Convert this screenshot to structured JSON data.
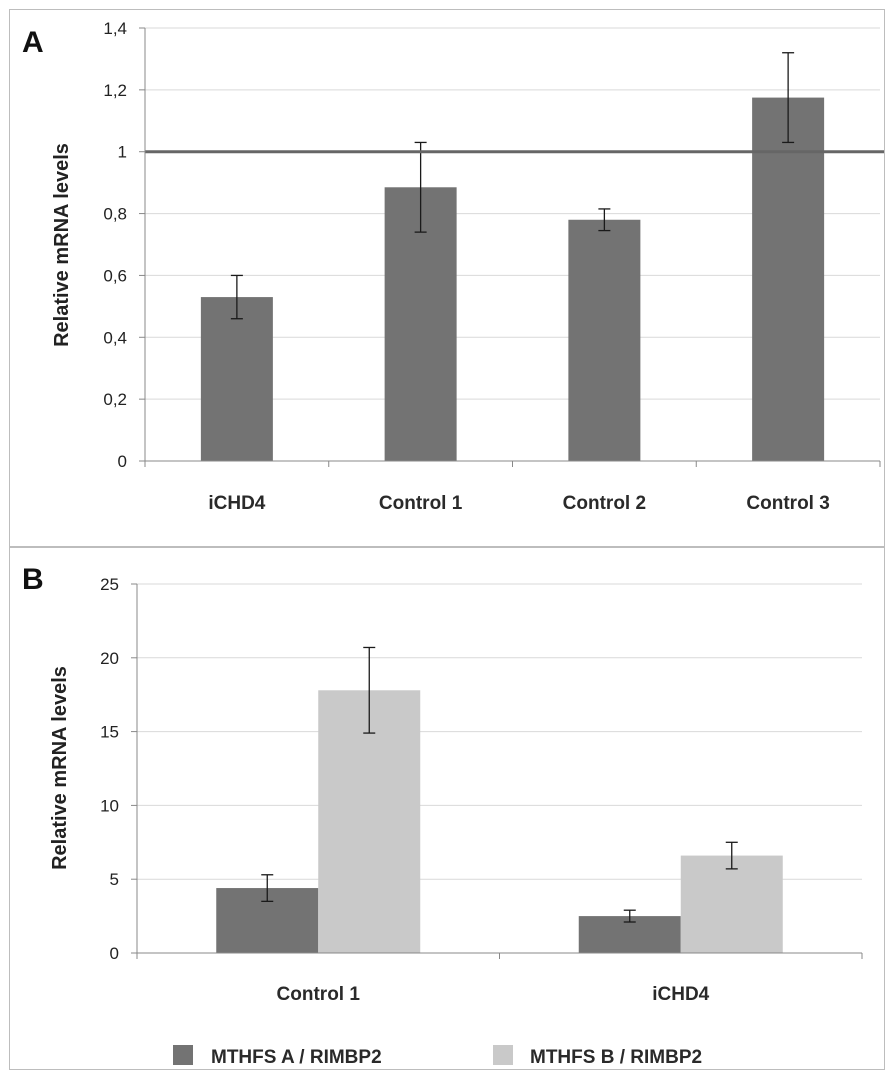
{
  "chart_data": [
    {
      "panel": "A",
      "type": "bar",
      "categories": [
        "iCHD4",
        "Control 1",
        "Control 2",
        "Control 3"
      ],
      "values": [
        0.53,
        0.885,
        0.78,
        1.175
      ],
      "errors": [
        0.07,
        0.145,
        0.035,
        0.145
      ],
      "ylabel": "Relative mRNA levels",
      "ylim": [
        0,
        1.4
      ],
      "yticks": [
        "0",
        "0,2",
        "0,4",
        "0,6",
        "0,8",
        "1",
        "1,2",
        "1,4"
      ],
      "reference_line": 1,
      "grid": true,
      "colors": {
        "bar": "#737373",
        "reference_line": "#666666",
        "grid": "#d9d9d9"
      }
    },
    {
      "panel": "B",
      "type": "bar",
      "categories": [
        "Control 1",
        "iCHD4"
      ],
      "series": [
        {
          "name": "MTHFS A / RIMBP2",
          "values": [
            4.4,
            2.5
          ],
          "errors": [
            0.9,
            0.4
          ],
          "color": "#737373"
        },
        {
          "name": "MTHFS B / RIMBP2",
          "values": [
            17.8,
            6.6
          ],
          "errors": [
            2.9,
            0.9
          ],
          "color": "#c9c9c9"
        }
      ],
      "ylabel": "Relative mRNA levels",
      "ylim": [
        0,
        25
      ],
      "yticks": [
        "0",
        "5",
        "10",
        "15",
        "20",
        "25"
      ],
      "legend_position": "bottom",
      "grid": true
    }
  ]
}
